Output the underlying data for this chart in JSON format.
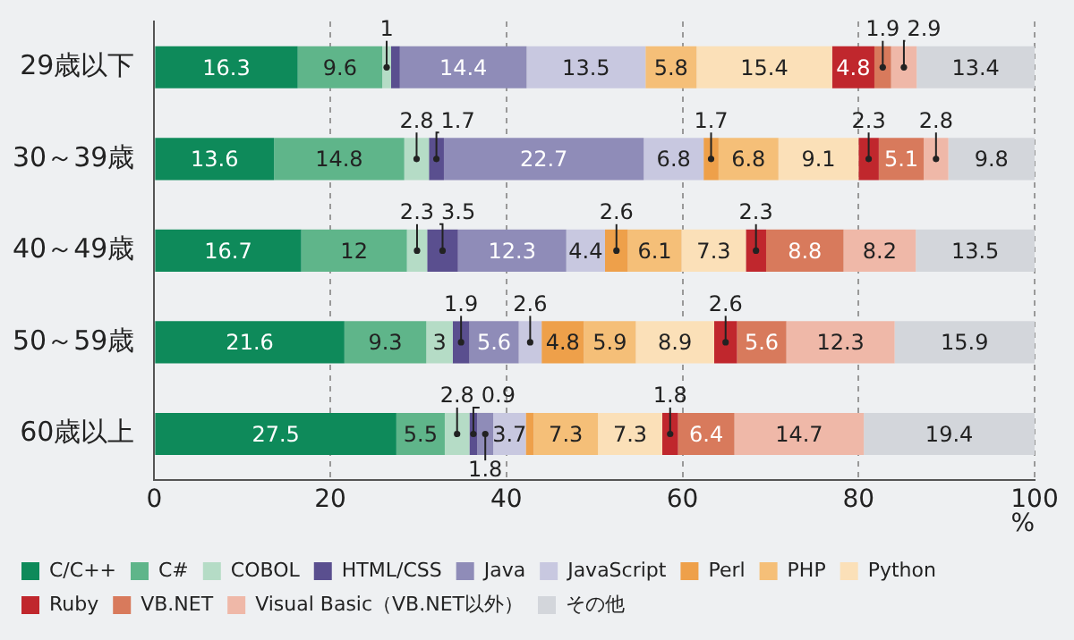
{
  "chart_data": {
    "type": "bar",
    "orientation": "horizontal",
    "stacked": true,
    "categories": [
      "29歳以下",
      "30～39歳",
      "40～49歳",
      "50～59歳",
      "60歳以上"
    ],
    "xlim": [
      0,
      100
    ],
    "xticks": [
      0,
      20,
      40,
      60,
      80,
      100
    ],
    "xlabel": "%",
    "grid": "x",
    "legend": "bottom",
    "series": [
      {
        "name": "C/C++",
        "color": "#0e8a5a",
        "values": [
          16.3,
          13.6,
          16.7,
          21.6,
          27.5
        ],
        "value_labels": [
          "16.3",
          "13.6",
          "16.7",
          "21.6",
          "27.5"
        ]
      },
      {
        "name": "C#",
        "color": "#5fb58a",
        "values": [
          9.6,
          14.8,
          12,
          9.3,
          5.5
        ],
        "value_labels": [
          "9.6",
          "14.8",
          "12",
          "9.3",
          "5.5"
        ]
      },
      {
        "name": "COBOL",
        "color": "#b5dcc6",
        "values": [
          1,
          2.8,
          2.3,
          3,
          2.8
        ],
        "value_labels": [
          "1",
          "2.8",
          "2.3",
          "3",
          "2.8"
        ]
      },
      {
        "name": "HTML/CSS",
        "color": "#5a4f8f",
        "values": [
          1,
          1.7,
          3.5,
          1.9,
          0.9
        ],
        "value_labels": [
          null,
          "1.7",
          "3.5",
          "1.9",
          "0.9"
        ]
      },
      {
        "name": "Java",
        "color": "#8f8cb8",
        "values": [
          14.4,
          22.7,
          12.3,
          5.6,
          1.8
        ],
        "value_labels": [
          "14.4",
          "22.7",
          "12.3",
          "5.6",
          "1.8"
        ]
      },
      {
        "name": "JavaScript",
        "color": "#c8c8e0",
        "values": [
          13.5,
          6.8,
          4.4,
          2.6,
          3.7
        ],
        "value_labels": [
          "13.5",
          "6.8",
          "4.4",
          "2.6",
          "3.7"
        ]
      },
      {
        "name": "Perl",
        "color": "#eea04a",
        "values": [
          null,
          1.7,
          2.6,
          4.8,
          0.9
        ],
        "value_labels": [
          null,
          "1.7",
          "2.6",
          "4.8",
          null
        ]
      },
      {
        "name": "PHP",
        "color": "#f5bf78",
        "values": [
          5.8,
          6.8,
          6.1,
          5.9,
          7.3
        ],
        "value_labels": [
          "5.8",
          "6.8",
          "6.1",
          "5.9",
          "7.3"
        ]
      },
      {
        "name": "Python",
        "color": "#fbe0b8",
        "values": [
          15.4,
          9.1,
          7.3,
          8.9,
          7.3
        ],
        "value_labels": [
          "15.4",
          "9.1",
          "7.3",
          "8.9",
          "7.3"
        ]
      },
      {
        "name": "Ruby",
        "color": "#c0272d",
        "values": [
          4.8,
          2.3,
          2.3,
          2.6,
          1.8
        ],
        "value_labels": [
          "4.8",
          "2.3",
          "2.3",
          "2.6",
          "1.8"
        ]
      },
      {
        "name": "VB.NET",
        "color": "#d87a5c",
        "values": [
          1.9,
          5.1,
          8.8,
          5.6,
          6.4
        ],
        "value_labels": [
          "1.9",
          "5.1",
          "8.8",
          "5.6",
          "6.4"
        ]
      },
      {
        "name": "Visual Basic（VB.NET以外）",
        "color": "#efb8a8",
        "values": [
          2.9,
          2.8,
          8.2,
          12.3,
          14.7
        ],
        "value_labels": [
          "2.9",
          "2.8",
          "8.2",
          "12.3",
          "14.7"
        ]
      },
      {
        "name": "その他",
        "color": "#d3d6db",
        "values": [
          13.4,
          9.8,
          13.5,
          15.9,
          19.4
        ],
        "value_labels": [
          "13.4",
          "9.8",
          "13.5",
          "15.9",
          "19.4"
        ]
      }
    ]
  }
}
